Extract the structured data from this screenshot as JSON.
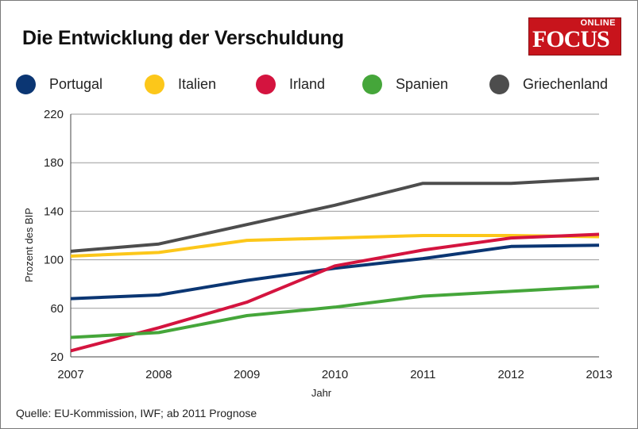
{
  "title": "Die Entwicklung der Verschuldung",
  "logo": {
    "top": "ONLINE",
    "brand": "FOCUS"
  },
  "source": "Quelle: EU-Kommission, IWF; ab 2011 Prognose",
  "chart_data": {
    "type": "line",
    "title": "Die Entwicklung der Verschuldung",
    "xlabel": "Jahr",
    "ylabel": "Prozent des BIP",
    "x": [
      "2007",
      "2008",
      "2009",
      "2010",
      "2011",
      "2012",
      "2013"
    ],
    "yticks": [
      "20",
      "60",
      "100",
      "140",
      "180",
      "220"
    ],
    "ylim": [
      20,
      220
    ],
    "grid": true,
    "legend_position": "top",
    "series": [
      {
        "name": "Portugal",
        "color": "#0b3673",
        "values": [
          68,
          71,
          83,
          93,
          101,
          111,
          112
        ]
      },
      {
        "name": "Italien",
        "color": "#fcc71a",
        "values": [
          103,
          106,
          116,
          118,
          120,
          120,
          119
        ]
      },
      {
        "name": "Irland",
        "color": "#d4143f",
        "values": [
          25,
          44,
          65,
          95,
          108,
          118,
          121
        ]
      },
      {
        "name": "Spanien",
        "color": "#45a63a",
        "values": [
          36,
          40,
          54,
          61,
          70,
          74,
          78
        ]
      },
      {
        "name": "Griechenland",
        "color": "#4d4d4d",
        "values": [
          107,
          113,
          129,
          145,
          163,
          163,
          167
        ]
      }
    ]
  }
}
